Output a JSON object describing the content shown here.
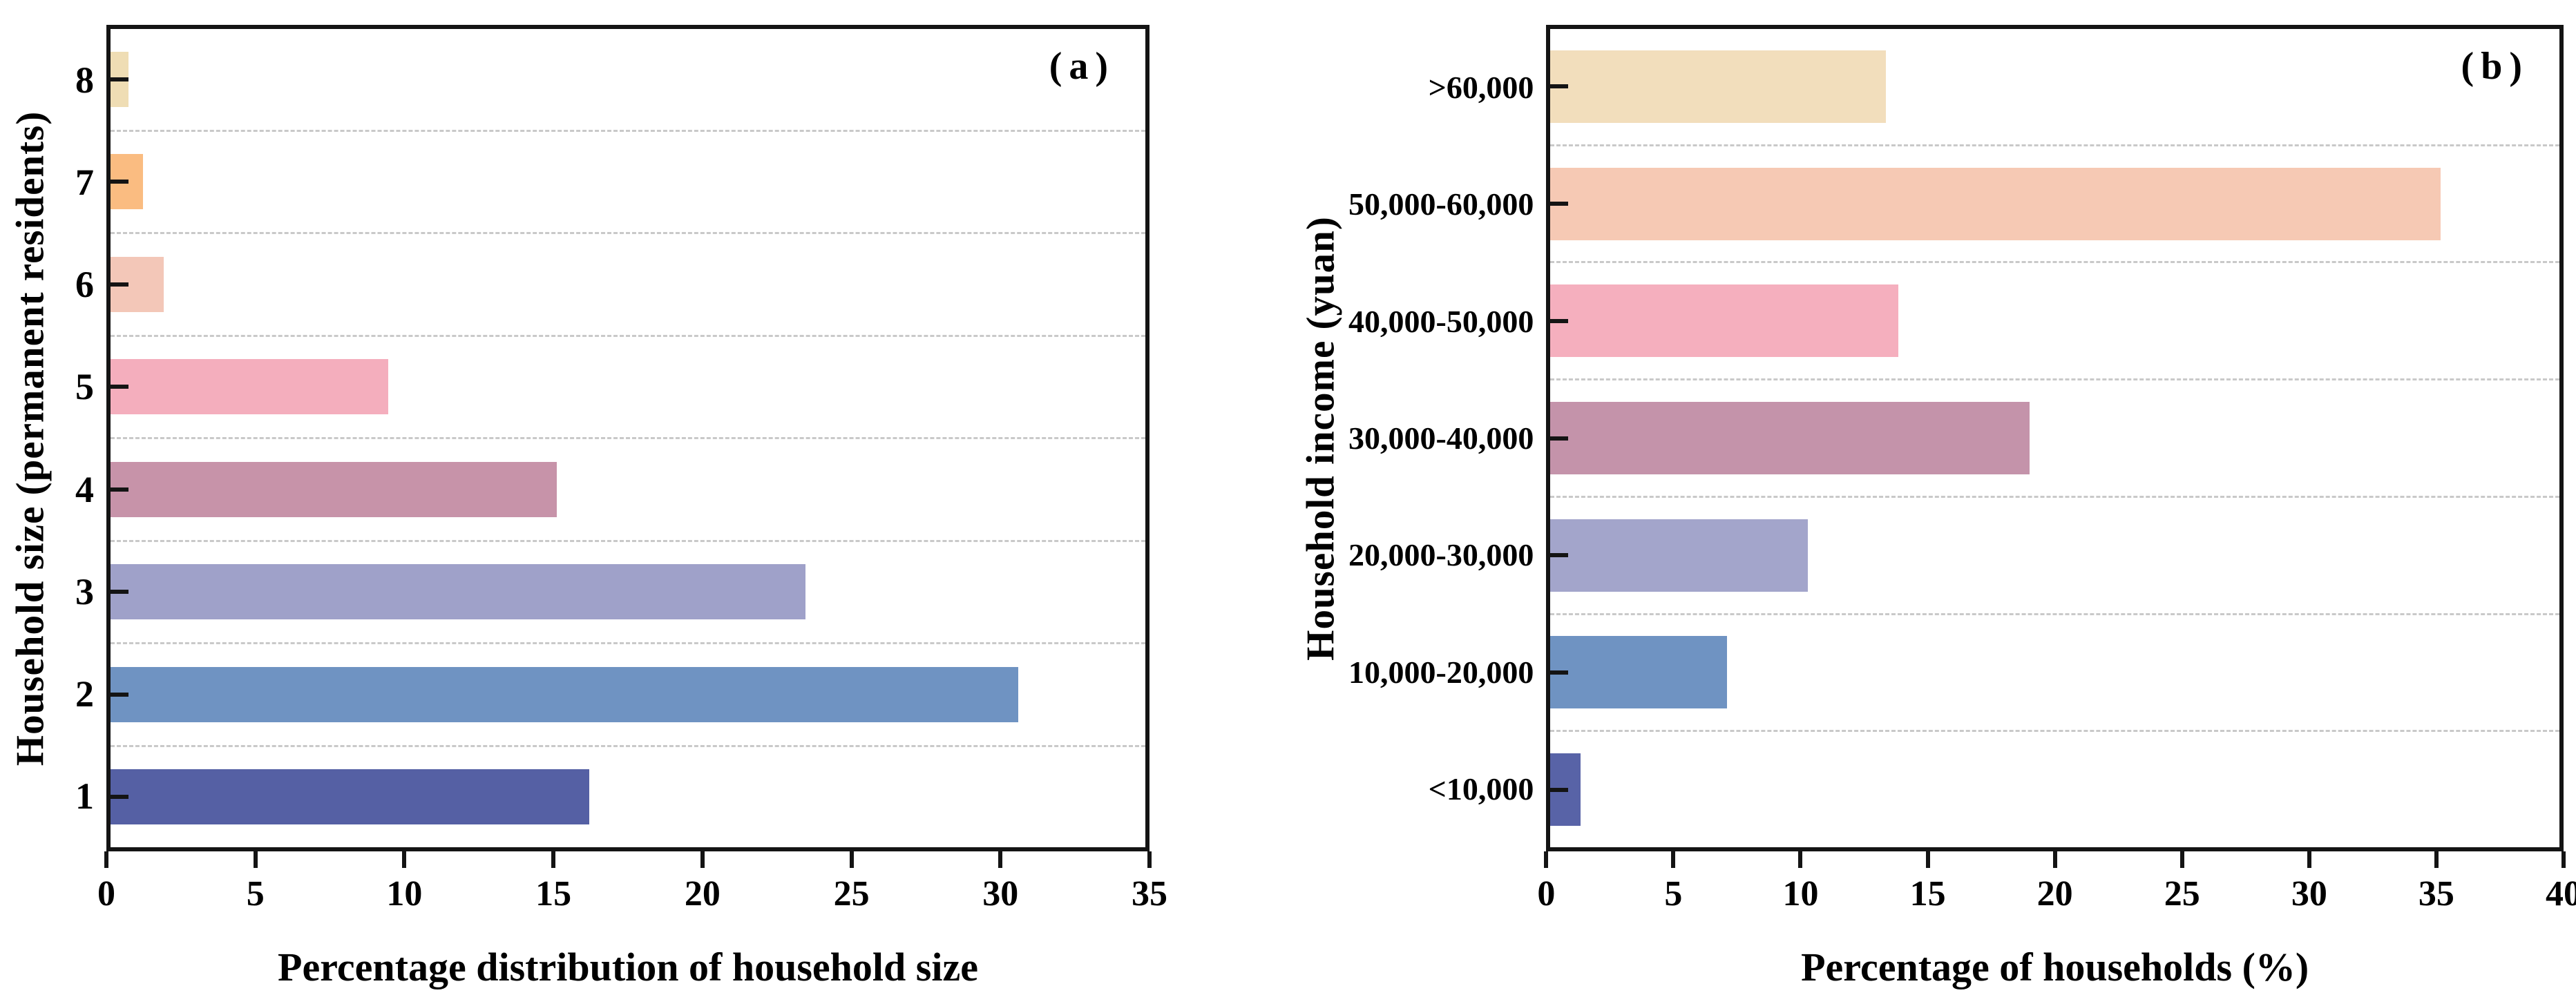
{
  "chart_data": [
    {
      "type": "bar",
      "orientation": "horizontal",
      "panel_label": "(a)",
      "xlabel": "Percentage distribution of household size",
      "ylabel": "Household size (permanent residents)",
      "xlim": [
        0,
        35
      ],
      "xticks": [
        0,
        5,
        10,
        15,
        20,
        25,
        30,
        35
      ],
      "grid": "dashed horizontal lines between category rows",
      "legend": "none",
      "categories": [
        "1",
        "2",
        "3",
        "4",
        "5",
        "6",
        "7",
        "8"
      ],
      "values": [
        16.2,
        30.7,
        23.5,
        15.1,
        9.4,
        1.8,
        1.1,
        0.6
      ],
      "bar_colors": [
        "#5560a4",
        "#6f93c2",
        "#9fa1c9",
        "#c793a9",
        "#f4aebd",
        "#f3c7b8",
        "#fabc81",
        "#efddb4"
      ]
    },
    {
      "type": "bar",
      "orientation": "horizontal",
      "panel_label": "(b)",
      "xlabel": "Percentage of households (%)",
      "ylabel": "Household income (yuan)",
      "xlim": [
        0,
        40
      ],
      "xticks": [
        0,
        5,
        10,
        15,
        20,
        25,
        30,
        35,
        40
      ],
      "grid": "dashed horizontal lines between category rows",
      "legend": "none",
      "categories": [
        "<10,000",
        "10,000-20,000",
        "20,000-30,000",
        "30,000-40,000",
        "40,000-50,000",
        "50,000-60,000",
        ">60,000"
      ],
      "values": [
        1.2,
        7.0,
        10.2,
        19.0,
        13.8,
        35.3,
        13.3
      ],
      "bar_colors": [
        "#5863a7",
        "#6f93c2",
        "#a3a5cb",
        "#c493aa",
        "#f5afbe",
        "#f6c9b4",
        "#f2debc"
      ]
    }
  ]
}
